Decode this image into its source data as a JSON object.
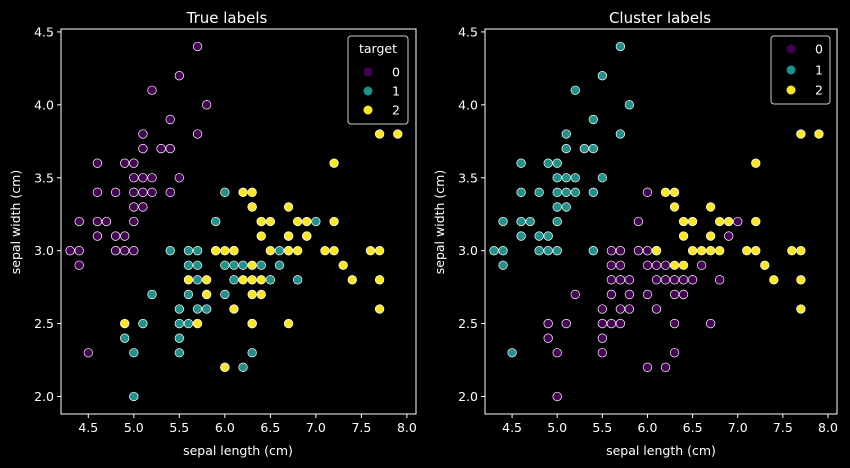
{
  "colors": {
    "background": "#000000",
    "axes": "#ffffff",
    "class0": "#440154",
    "class1": "#21918c",
    "class2": "#fde725",
    "marker_edge": "#ffffff"
  },
  "chart_data": [
    {
      "type": "scatter",
      "title": "True labels",
      "xlabel": "sepal length (cm)",
      "ylabel": "sepal width (cm)",
      "xlim": [
        4.2,
        8.1
      ],
      "ylim": [
        1.88,
        4.52
      ],
      "xticks": [
        4.5,
        5.0,
        5.5,
        6.0,
        6.5,
        7.0,
        7.5,
        8.0
      ],
      "xtick_labels": [
        "4.5",
        "5.0",
        "5.5",
        "6.0",
        "6.5",
        "7.0",
        "7.5",
        "8.0"
      ],
      "yticks": [
        2.0,
        2.5,
        3.0,
        3.5,
        4.0,
        4.5
      ],
      "ytick_labels": [
        "2.0",
        "2.5",
        "3.0",
        "3.5",
        "4.0",
        "4.5"
      ],
      "grid": false,
      "legend": {
        "title": "target",
        "placement": "top-right",
        "entries": [
          "0",
          "1",
          "2"
        ]
      },
      "series": [
        {
          "name": "0",
          "color": "#440154",
          "points": [
            [
              4.3,
              3.0
            ],
            [
              4.4,
              2.9
            ],
            [
              4.4,
              3.0
            ],
            [
              4.4,
              3.2
            ],
            [
              4.5,
              2.3
            ],
            [
              4.6,
              3.1
            ],
            [
              4.6,
              3.2
            ],
            [
              4.6,
              3.4
            ],
            [
              4.6,
              3.6
            ],
            [
              4.7,
              3.2
            ],
            [
              4.8,
              3.0
            ],
            [
              4.8,
              3.1
            ],
            [
              4.8,
              3.4
            ],
            [
              4.9,
              3.0
            ],
            [
              4.9,
              3.1
            ],
            [
              4.9,
              3.6
            ],
            [
              5.0,
              3.0
            ],
            [
              5.0,
              3.2
            ],
            [
              5.0,
              3.3
            ],
            [
              5.0,
              3.4
            ],
            [
              5.0,
              3.5
            ],
            [
              5.0,
              3.6
            ],
            [
              5.1,
              3.3
            ],
            [
              5.1,
              3.4
            ],
            [
              5.1,
              3.5
            ],
            [
              5.1,
              3.7
            ],
            [
              5.1,
              3.8
            ],
            [
              5.2,
              3.4
            ],
            [
              5.2,
              3.5
            ],
            [
              5.2,
              4.1
            ],
            [
              5.3,
              3.7
            ],
            [
              5.4,
              3.4
            ],
            [
              5.4,
              3.7
            ],
            [
              5.4,
              3.9
            ],
            [
              5.5,
              3.5
            ],
            [
              5.5,
              4.2
            ],
            [
              5.7,
              3.8
            ],
            [
              5.7,
              4.4
            ],
            [
              5.8,
              4.0
            ]
          ]
        },
        {
          "name": "1",
          "color": "#21918c",
          "points": [
            [
              4.9,
              2.4
            ],
            [
              5.0,
              2.0
            ],
            [
              5.0,
              2.3
            ],
            [
              5.1,
              2.5
            ],
            [
              5.2,
              2.7
            ],
            [
              5.4,
              3.0
            ],
            [
              5.5,
              2.3
            ],
            [
              5.5,
              2.4
            ],
            [
              5.5,
              2.5
            ],
            [
              5.5,
              2.6
            ],
            [
              5.6,
              2.5
            ],
            [
              5.6,
              2.7
            ],
            [
              5.6,
              2.9
            ],
            [
              5.6,
              3.0
            ],
            [
              5.7,
              2.6
            ],
            [
              5.7,
              2.8
            ],
            [
              5.7,
              2.9
            ],
            [
              5.7,
              3.0
            ],
            [
              5.8,
              2.6
            ],
            [
              5.8,
              2.7
            ],
            [
              5.9,
              3.0
            ],
            [
              5.9,
              3.2
            ],
            [
              6.0,
              2.2
            ],
            [
              6.0,
              2.7
            ],
            [
              6.0,
              2.9
            ],
            [
              6.0,
              3.4
            ],
            [
              6.1,
              2.8
            ],
            [
              6.1,
              2.9
            ],
            [
              6.1,
              3.0
            ],
            [
              6.2,
              2.2
            ],
            [
              6.2,
              2.9
            ],
            [
              6.3,
              2.3
            ],
            [
              6.3,
              2.5
            ],
            [
              6.3,
              3.3
            ],
            [
              6.4,
              2.9
            ],
            [
              6.4,
              3.2
            ],
            [
              6.5,
              2.8
            ],
            [
              6.6,
              2.9
            ],
            [
              6.6,
              3.0
            ],
            [
              6.7,
              3.0
            ],
            [
              6.7,
              3.1
            ],
            [
              6.8,
              2.8
            ],
            [
              6.9,
              3.1
            ],
            [
              7.0,
              3.2
            ]
          ]
        },
        {
          "name": "2",
          "color": "#fde725",
          "points": [
            [
              4.9,
              2.5
            ],
            [
              5.6,
              2.8
            ],
            [
              5.7,
              2.5
            ],
            [
              5.8,
              2.7
            ],
            [
              5.8,
              2.8
            ],
            [
              5.9,
              3.0
            ],
            [
              6.0,
              2.2
            ],
            [
              6.0,
              3.0
            ],
            [
              6.1,
              2.6
            ],
            [
              6.1,
              3.0
            ],
            [
              6.2,
              2.8
            ],
            [
              6.2,
              3.4
            ],
            [
              6.3,
              2.5
            ],
            [
              6.3,
              2.7
            ],
            [
              6.3,
              2.8
            ],
            [
              6.3,
              2.9
            ],
            [
              6.3,
              3.3
            ],
            [
              6.3,
              3.4
            ],
            [
              6.4,
              2.7
            ],
            [
              6.4,
              2.8
            ],
            [
              6.4,
              3.1
            ],
            [
              6.4,
              3.2
            ],
            [
              6.5,
              3.0
            ],
            [
              6.5,
              3.2
            ],
            [
              6.7,
              2.5
            ],
            [
              6.7,
              3.0
            ],
            [
              6.7,
              3.1
            ],
            [
              6.7,
              3.3
            ],
            [
              6.8,
              3.0
            ],
            [
              6.8,
              3.2
            ],
            [
              6.9,
              3.1
            ],
            [
              6.9,
              3.2
            ],
            [
              7.1,
              3.0
            ],
            [
              7.2,
              3.0
            ],
            [
              7.2,
              3.2
            ],
            [
              7.2,
              3.6
            ],
            [
              7.3,
              2.9
            ],
            [
              7.4,
              2.8
            ],
            [
              7.6,
              3.0
            ],
            [
              7.7,
              2.6
            ],
            [
              7.7,
              2.8
            ],
            [
              7.7,
              3.0
            ],
            [
              7.7,
              3.8
            ],
            [
              7.9,
              3.8
            ]
          ]
        }
      ]
    },
    {
      "type": "scatter",
      "title": "Cluster labels",
      "xlabel": "sepal length (cm)",
      "ylabel": "sepal width (cm)",
      "xlim": [
        4.2,
        8.1
      ],
      "ylim": [
        1.88,
        4.52
      ],
      "xticks": [
        4.5,
        5.0,
        5.5,
        6.0,
        6.5,
        7.0,
        7.5,
        8.0
      ],
      "xtick_labels": [
        "4.5",
        "5.0",
        "5.5",
        "6.0",
        "6.5",
        "7.0",
        "7.5",
        "8.0"
      ],
      "yticks": [
        2.0,
        2.5,
        3.0,
        3.5,
        4.0,
        4.5
      ],
      "ytick_labels": [
        "2.0",
        "2.5",
        "3.0",
        "3.5",
        "4.0",
        "4.5"
      ],
      "grid": false,
      "legend": {
        "title": "",
        "placement": "top-right",
        "entries": [
          "0",
          "1",
          "2"
        ]
      },
      "series": [
        {
          "name": "0",
          "color": "#440154",
          "points": [
            [
              4.9,
              2.4
            ],
            [
              4.9,
              2.5
            ],
            [
              5.0,
              2.0
            ],
            [
              5.0,
              2.3
            ],
            [
              5.1,
              2.5
            ],
            [
              5.2,
              2.7
            ],
            [
              5.5,
              2.3
            ],
            [
              5.5,
              2.4
            ],
            [
              5.5,
              2.5
            ],
            [
              5.5,
              2.6
            ],
            [
              5.6,
              2.5
            ],
            [
              5.6,
              2.7
            ],
            [
              5.6,
              2.8
            ],
            [
              5.6,
              2.9
            ],
            [
              5.6,
              3.0
            ],
            [
              5.7,
              2.5
            ],
            [
              5.7,
              2.6
            ],
            [
              5.7,
              2.8
            ],
            [
              5.7,
              2.9
            ],
            [
              5.7,
              3.0
            ],
            [
              5.8,
              2.6
            ],
            [
              5.8,
              2.7
            ],
            [
              5.8,
              2.8
            ],
            [
              5.9,
              3.0
            ],
            [
              5.9,
              3.2
            ],
            [
              6.0,
              2.2
            ],
            [
              6.0,
              2.7
            ],
            [
              6.0,
              2.9
            ],
            [
              6.0,
              3.0
            ],
            [
              6.0,
              3.4
            ],
            [
              6.1,
              2.6
            ],
            [
              6.1,
              2.8
            ],
            [
              6.1,
              2.9
            ],
            [
              6.1,
              3.0
            ],
            [
              6.2,
              2.2
            ],
            [
              6.2,
              2.8
            ],
            [
              6.2,
              2.9
            ],
            [
              6.3,
              2.3
            ],
            [
              6.3,
              2.5
            ],
            [
              6.3,
              2.7
            ],
            [
              6.3,
              2.8
            ],
            [
              6.4,
              2.7
            ],
            [
              6.4,
              2.8
            ],
            [
              6.5,
              2.8
            ],
            [
              6.6,
              2.9
            ],
            [
              6.7,
              2.5
            ],
            [
              6.8,
              2.8
            ],
            [
              6.9,
              3.1
            ],
            [
              7.0,
              3.2
            ]
          ]
        },
        {
          "name": "1",
          "color": "#21918c",
          "points": [
            [
              4.3,
              3.0
            ],
            [
              4.4,
              2.9
            ],
            [
              4.4,
              3.0
            ],
            [
              4.4,
              3.2
            ],
            [
              4.5,
              2.3
            ],
            [
              4.6,
              3.1
            ],
            [
              4.6,
              3.2
            ],
            [
              4.6,
              3.4
            ],
            [
              4.6,
              3.6
            ],
            [
              4.7,
              3.2
            ],
            [
              4.8,
              3.0
            ],
            [
              4.8,
              3.1
            ],
            [
              4.8,
              3.4
            ],
            [
              4.9,
              3.0
            ],
            [
              4.9,
              3.1
            ],
            [
              4.9,
              3.6
            ],
            [
              5.0,
              3.0
            ],
            [
              5.0,
              3.2
            ],
            [
              5.0,
              3.3
            ],
            [
              5.0,
              3.4
            ],
            [
              5.0,
              3.5
            ],
            [
              5.0,
              3.6
            ],
            [
              5.1,
              3.3
            ],
            [
              5.1,
              3.4
            ],
            [
              5.1,
              3.5
            ],
            [
              5.1,
              3.7
            ],
            [
              5.1,
              3.8
            ],
            [
              5.2,
              3.4
            ],
            [
              5.2,
              3.5
            ],
            [
              5.2,
              4.1
            ],
            [
              5.3,
              3.7
            ],
            [
              5.4,
              3.0
            ],
            [
              5.4,
              3.4
            ],
            [
              5.4,
              3.7
            ],
            [
              5.4,
              3.9
            ],
            [
              5.5,
              3.5
            ],
            [
              5.5,
              4.2
            ],
            [
              5.7,
              3.8
            ],
            [
              5.7,
              4.4
            ],
            [
              5.8,
              4.0
            ]
          ]
        },
        {
          "name": "2",
          "color": "#fde725",
          "points": [
            [
              6.1,
              3.0
            ],
            [
              6.2,
              3.4
            ],
            [
              6.3,
              2.9
            ],
            [
              6.3,
              3.3
            ],
            [
              6.3,
              3.4
            ],
            [
              6.4,
              2.9
            ],
            [
              6.4,
              3.1
            ],
            [
              6.4,
              3.2
            ],
            [
              6.5,
              3.0
            ],
            [
              6.5,
              3.2
            ],
            [
              6.6,
              3.0
            ],
            [
              6.7,
              3.0
            ],
            [
              6.7,
              3.1
            ],
            [
              6.7,
              3.3
            ],
            [
              6.8,
              3.0
            ],
            [
              6.8,
              3.2
            ],
            [
              6.9,
              3.2
            ],
            [
              7.1,
              3.0
            ],
            [
              7.2,
              3.0
            ],
            [
              7.2,
              3.2
            ],
            [
              7.2,
              3.6
            ],
            [
              7.3,
              2.9
            ],
            [
              7.4,
              2.8
            ],
            [
              7.6,
              3.0
            ],
            [
              7.7,
              2.6
            ],
            [
              7.7,
              2.8
            ],
            [
              7.7,
              3.0
            ],
            [
              7.7,
              3.8
            ],
            [
              7.9,
              3.8
            ]
          ]
        }
      ]
    }
  ]
}
